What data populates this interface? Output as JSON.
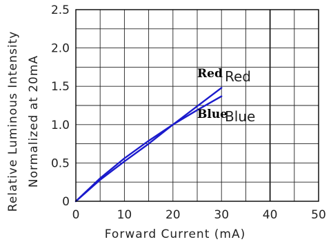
{
  "chart_data": {
    "type": "line",
    "title": "",
    "xlabel": "Forward Current (mA)",
    "ylabel_lines": [
      "Relative Luminous Intensity",
      "Normalized at 20mA"
    ],
    "xlim": [
      0,
      50
    ],
    "ylim": [
      0,
      2.5
    ],
    "x_ticks": [
      0,
      10,
      20,
      30,
      40,
      50
    ],
    "y_ticks": [
      0,
      0.5,
      1.0,
      1.5,
      2.0,
      2.5
    ],
    "x_tick_labels": [
      "0",
      "10",
      "20",
      "30",
      "40",
      "50"
    ],
    "y_tick_labels": [
      "0",
      "0.5",
      "1.0",
      "1.5",
      "2.0",
      "2.5"
    ],
    "grid": true,
    "emphasized_x_line": 40,
    "line_color": "#1a1acc",
    "series": [
      {
        "name": "Red",
        "x": [
          0,
          5,
          10,
          15,
          20,
          25,
          30
        ],
        "y": [
          0,
          0.28,
          0.52,
          0.75,
          1.0,
          1.24,
          1.48
        ]
      },
      {
        "name": "Blue",
        "x": [
          0,
          5,
          10,
          15,
          20,
          25,
          30
        ],
        "y": [
          0,
          0.3,
          0.56,
          0.79,
          1.0,
          1.19,
          1.37
        ]
      }
    ],
    "annotations": [
      {
        "series": "Red",
        "bold_text": "Red",
        "thin_text": "Red"
      },
      {
        "series": "Blue",
        "bold_text": "Blue",
        "thin_text": "Blue"
      }
    ]
  }
}
